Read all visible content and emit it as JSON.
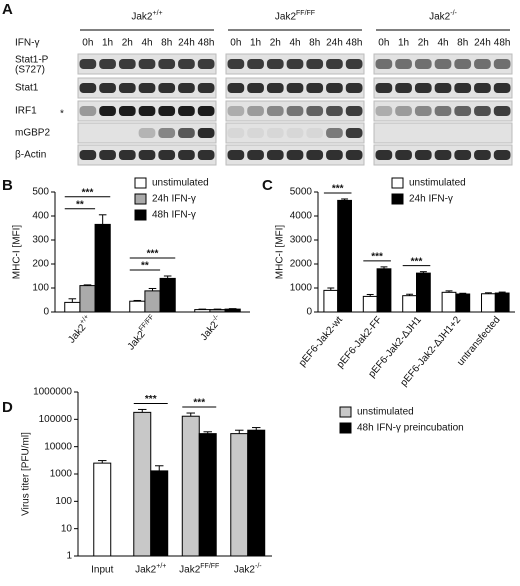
{
  "panel_a": {
    "label": "A",
    "groups": [
      "Jak2+/+",
      "Jak2FF/FF",
      "Jak2-/-"
    ],
    "treatment": "IFN-γ",
    "timepoints": [
      "0h",
      "1h",
      "2h",
      "4h",
      "8h",
      "24h",
      "48h"
    ],
    "rows": [
      {
        "name": "Stat1-P",
        "note": "(S727)"
      },
      {
        "name": "Stat1"
      },
      {
        "name": "IRF1",
        "marker": "*"
      },
      {
        "name": "mGBP2"
      },
      {
        "name": "β-Actin"
      }
    ]
  },
  "chart_data": [
    {
      "type": "bar",
      "label": "B",
      "ylabel": "MHC-I [MFI]",
      "categories": [
        "Jak2+/+",
        "Jak2FF/FF",
        "Jak2-/-"
      ],
      "series": [
        {
          "name": "unstimulated",
          "color": "#ffffff",
          "values": [
            40,
            45,
            10
          ],
          "errors": [
            15,
            3,
            2
          ]
        },
        {
          "name": "24h IFN-γ",
          "color": "#aaaaaa",
          "values": [
            110,
            88,
            10
          ],
          "errors": [
            3,
            10,
            2
          ]
        },
        {
          "name": "48h IFN-γ",
          "color": "#000000",
          "values": [
            365,
            140,
            12
          ],
          "errors": [
            40,
            10,
            2
          ]
        }
      ],
      "ylim": [
        0,
        500
      ],
      "yticks": [
        0,
        100,
        200,
        300,
        400,
        500
      ],
      "annotations": [
        {
          "text": "**",
          "category": 0,
          "series": [
            0,
            1
          ]
        },
        {
          "text": "***",
          "category": 0,
          "series": [
            0,
            2
          ]
        },
        {
          "text": "**",
          "category": 1,
          "series": [
            0,
            1
          ]
        },
        {
          "text": "***",
          "category": 1,
          "series": [
            0,
            2
          ]
        }
      ]
    },
    {
      "type": "bar",
      "label": "C",
      "ylabel": "MHC-I [MFI]",
      "categories": [
        "pEF6-Jak2-wt",
        "pEF6-Jak2-FF",
        "pEF6-Jak2-ΔJH1",
        "pEF6-Jak2-ΔJH1+2",
        "untransfected"
      ],
      "series": [
        {
          "name": "unstimulated",
          "color": "#ffffff",
          "values": [
            900,
            650,
            680,
            820,
            760
          ],
          "errors": [
            100,
            80,
            60,
            60,
            40
          ]
        },
        {
          "name": "24h IFN-γ",
          "color": "#000000",
          "values": [
            4650,
            1800,
            1620,
            750,
            790
          ],
          "errors": [
            60,
            80,
            60,
            30,
            40
          ]
        }
      ],
      "ylim": [
        0,
        5000
      ],
      "yticks": [
        0,
        1000,
        2000,
        3000,
        4000,
        5000
      ],
      "annotations": [
        {
          "text": "***",
          "category": 0,
          "series": [
            0,
            1
          ]
        },
        {
          "text": "***",
          "category": 1,
          "series": [
            0,
            1
          ]
        },
        {
          "text": "***",
          "category": 2,
          "series": [
            0,
            1
          ]
        }
      ]
    },
    {
      "type": "bar",
      "label": "D",
      "ylabel": "Virus titer [PFU/ml]",
      "yscale": "log",
      "categories": [
        "Input",
        "Jak2+/+",
        "Jak2FF/FF",
        "Jak2-/-"
      ],
      "series": [
        {
          "color": "#ffffff",
          "values": [
            2500,
            null,
            null,
            null
          ],
          "errors": [
            600,
            null,
            null,
            null
          ]
        },
        {
          "name": "unstimulated",
          "color": "#c8c8c8",
          "values": [
            null,
            180000,
            130000,
            30000
          ],
          "errors": [
            null,
            50000,
            40000,
            10000
          ]
        },
        {
          "name": "48h IFN-γ preincubation",
          "color": "#000000",
          "values": [
            null,
            1300,
            30000,
            40000
          ],
          "errors": [
            null,
            700,
            5000,
            10000
          ]
        }
      ],
      "ylim": [
        1,
        1000000
      ],
      "yticks": [
        1,
        10,
        100,
        1000,
        10000,
        100000,
        1000000
      ],
      "annotations": [
        {
          "text": "***",
          "category": 1,
          "series": [
            1,
            2
          ]
        },
        {
          "text": "***",
          "category": 2,
          "series": [
            1,
            2
          ]
        }
      ]
    }
  ]
}
